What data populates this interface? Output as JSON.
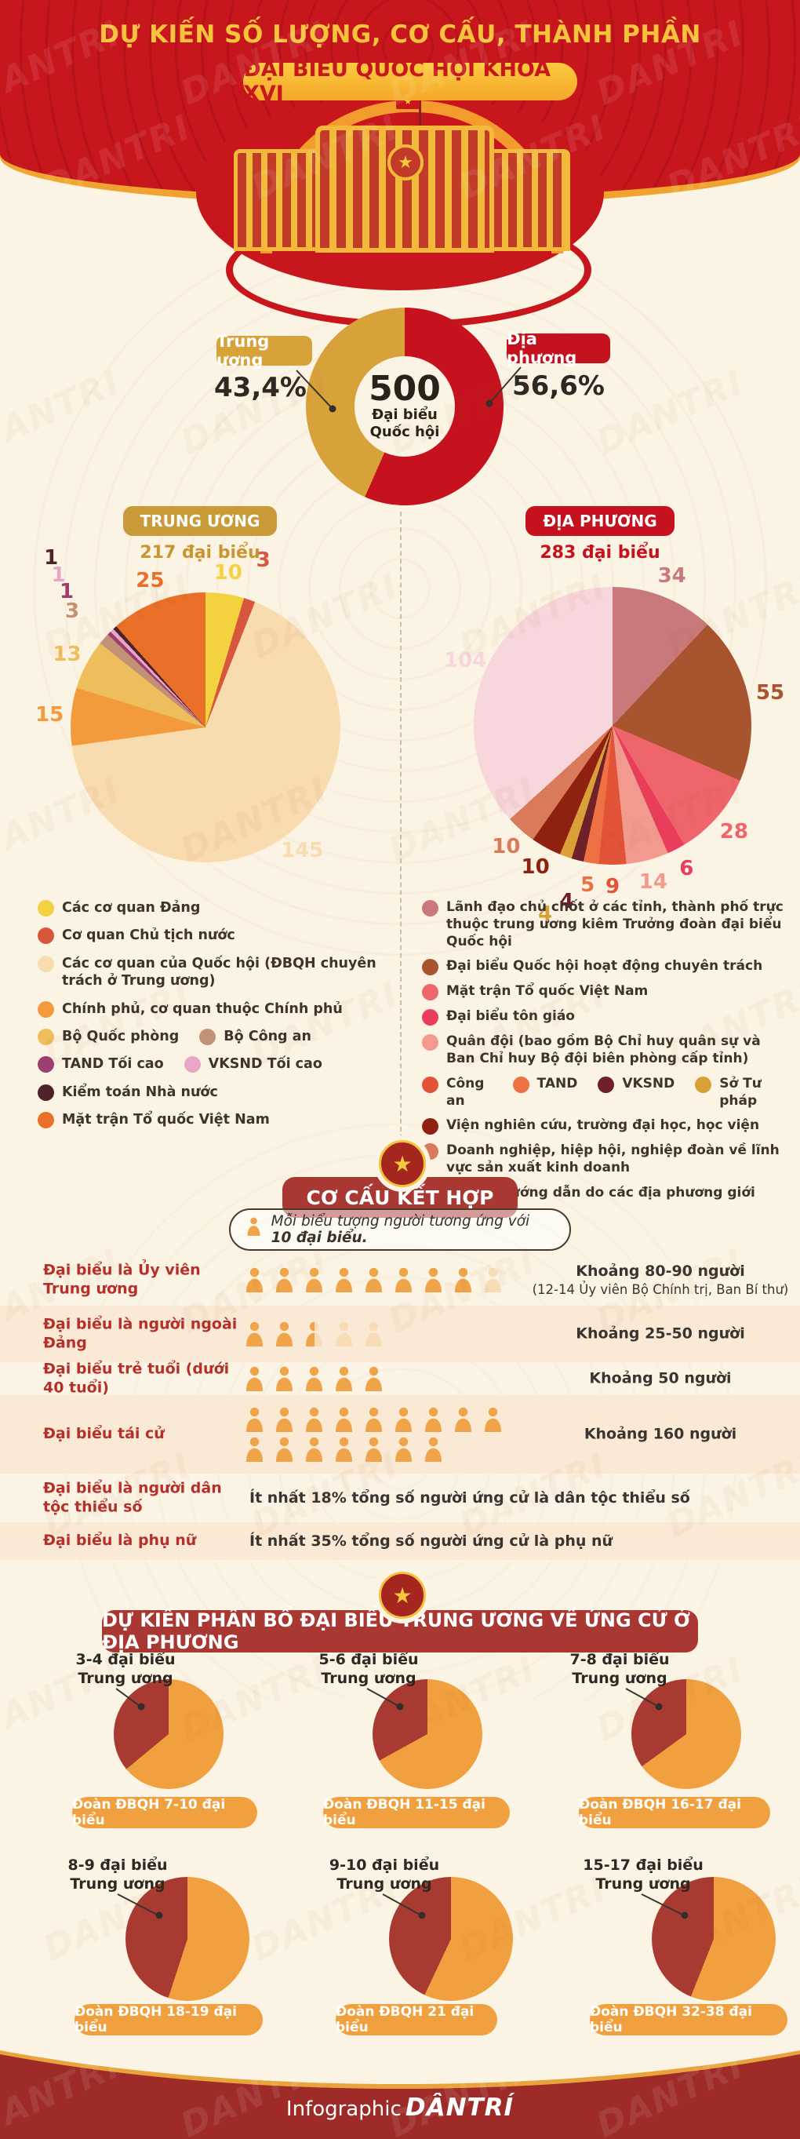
{
  "watermark": "DANTRI",
  "colors": {
    "header_red": "#C8161D",
    "gold": "#F2B93B",
    "cream": "#FBF4E4",
    "donut_gold": "#D8A23B",
    "donut_red": "#C5121E",
    "person_solid": "#F0A449",
    "person_light": "#F8DCB6",
    "mini_red": "#A93A31",
    "mini_orange": "#F0A03F"
  },
  "header": {
    "title": "DỰ KIẾN SỐ LƯỢNG, CƠ CẤU, THÀNH PHẦN",
    "pill": "ĐẠI BIỂU QUỐC HỘI KHÓA XVI"
  },
  "donut": {
    "center": {
      "value": "500",
      "line1": "Đại biểu",
      "line2": "Quốc hội"
    },
    "left": {
      "label": "Trung ương",
      "pct": "43,4%"
    },
    "right": {
      "label": "Địa phương",
      "pct": "56,6%"
    }
  },
  "columns": {
    "left": {
      "pill": "TRUNG ƯƠNG",
      "subtitle": "217 đại biểu",
      "legend": [
        [
          {
            "color": "#F4D13F",
            "label": "Các cơ quan Đảng"
          }
        ],
        [
          {
            "color": "#D6573B",
            "label": "Cơ quan Chủ tịch nước"
          }
        ],
        [
          {
            "color": "#F8DBAE",
            "label": "Các cơ quan của Quốc hội (ĐBQH chuyên trách ở Trung ương)"
          }
        ],
        [
          {
            "color": "#F29A3C",
            "label": "Chính phủ, cơ quan thuộc Chính phủ"
          }
        ],
        [
          {
            "color": "#EFBE5C",
            "label": "Bộ Quốc phòng"
          },
          {
            "color": "#C29176",
            "label": "Bộ Công an"
          }
        ],
        [
          {
            "color": "#9C3F70",
            "label": "TAND Tối cao"
          },
          {
            "color": "#E8A5C6",
            "label": "VKSND Tối cao"
          }
        ],
        [
          {
            "color": "#4E2328",
            "label": "Kiểm toán Nhà nước"
          }
        ],
        [
          {
            "color": "#EA6F28",
            "label": "Mặt trận Tổ quốc Việt Nam"
          }
        ]
      ]
    },
    "right": {
      "pill": "ĐỊA PHƯƠNG",
      "subtitle": "283 đại biểu",
      "legend": [
        [
          {
            "color": "#C9797B",
            "label": "Lãnh đạo chủ chốt ở các tỉnh, thành phố trực thuộc trung ương kiêm Trưởng đoàn đại biểu Quốc hội"
          }
        ],
        [
          {
            "color": "#A8542F",
            "label": "Đại biểu Quốc hội hoạt động chuyên trách"
          }
        ],
        [
          {
            "color": "#EE666B",
            "label": "Mặt trận Tổ quốc Việt Nam"
          }
        ],
        [
          {
            "color": "#EA3D5B",
            "label": "Đại biểu tôn giáo"
          }
        ],
        [
          {
            "color": "#F29A8D",
            "label": "Quân đội (bao gồm Bộ Chỉ huy quân sự và Ban Chỉ huy Bộ đội biên phòng cấp tỉnh)"
          }
        ],
        [
          {
            "color": "#E25338",
            "label": "Công an"
          },
          {
            "color": "#ED7142",
            "label": "TAND"
          },
          {
            "color": "#6E2128",
            "label": "VKSND"
          },
          {
            "color": "#D9A037",
            "label": "Sở Tư pháp"
          }
        ],
        [
          {
            "color": "#8F2110",
            "label": "Viện nghiên cứu, trường đại học, học viện"
          }
        ],
        [
          {
            "color": "#D97A5B",
            "label": "Doanh nghiệp, hiệp hội, nghiệp đoàn về lĩnh vực sản xuất kinh doanh"
          }
        ],
        [
          {
            "color": "#F7D6DC",
            "label": "Cơ cấu hướng dẫn do các địa phương giới thiệu"
          }
        ]
      ]
    }
  },
  "chart_data": [
    {
      "id": "donut-total",
      "type": "pie",
      "title": "500 Đại biểu Quốc hội",
      "slices": [
        {
          "label": "Địa phương",
          "value": 56.6,
          "color": "#C5121E"
        },
        {
          "label": "Trung ương",
          "value": 43.4,
          "color": "#D8A23B"
        }
      ]
    },
    {
      "id": "pie-trunguong",
      "type": "pie",
      "title": "TRUNG ƯƠNG 217 đại biểu",
      "total": 217,
      "slices": [
        {
          "label": "Các cơ quan Đảng",
          "value": 10,
          "color": "#F4D13F"
        },
        {
          "label": "Cơ quan Chủ tịch nước",
          "value": 3,
          "color": "#D6573B"
        },
        {
          "label": "Các cơ quan của Quốc hội (ĐBQH chuyên trách ở Trung ương)",
          "value": 145,
          "color": "#F8DBAE"
        },
        {
          "label": "Chính phủ, cơ quan thuộc Chính phủ",
          "value": 15,
          "color": "#F29A3C"
        },
        {
          "label": "Bộ Quốc phòng",
          "value": 13,
          "color": "#EFBE5C"
        },
        {
          "label": "Bộ Công an",
          "value": 3,
          "color": "#C29176"
        },
        {
          "label": "TAND Tối cao",
          "value": 1,
          "color": "#9C3F70"
        },
        {
          "label": "VKSND Tối cao",
          "value": 1,
          "color": "#E8A5C6"
        },
        {
          "label": "Kiểm toán Nhà nước",
          "value": 1,
          "color": "#4E2328"
        },
        {
          "label": "Mặt trận Tổ quốc Việt Nam",
          "value": 25,
          "color": "#EA6F28"
        }
      ]
    },
    {
      "id": "pie-diaphuong",
      "type": "pie",
      "title": "ĐỊA PHƯƠNG 283 đại biểu",
      "total": 283,
      "slices": [
        {
          "label": "Lãnh đạo chủ chốt ở các tỉnh, thành phố trực thuộc trung ương kiêm Trưởng đoàn đại biểu Quốc hội",
          "value": 34,
          "color": "#C9797B"
        },
        {
          "label": "Đại biểu Quốc hội hoạt động chuyên trách",
          "value": 55,
          "color": "#A8542F"
        },
        {
          "label": "Mặt trận Tổ quốc Việt Nam",
          "value": 28,
          "color": "#EE666B"
        },
        {
          "label": "Đại biểu tôn giáo",
          "value": 6,
          "color": "#EA3D5B"
        },
        {
          "label": "Quân đội (bao gồm Bộ Chỉ huy quân sự và Ban Chỉ huy Bộ đội biên phòng cấp tỉnh)",
          "value": 14,
          "color": "#F29A8D"
        },
        {
          "label": "Công an",
          "value": 9,
          "color": "#E25338"
        },
        {
          "label": "TAND",
          "value": 5,
          "color": "#ED7142"
        },
        {
          "label": "VKSND",
          "value": 4,
          "color": "#6E2128"
        },
        {
          "label": "Sở Tư pháp",
          "value": 4,
          "color": "#D9A037"
        },
        {
          "label": "Viện nghiên cứu, trường đại học, học viện",
          "value": 10,
          "color": "#8F2110"
        },
        {
          "label": "Doanh nghiệp, hiệp hội, nghiệp đoàn về lĩnh vực sản xuất kinh doanh",
          "value": 10,
          "color": "#D97A5B"
        },
        {
          "label": "Cơ cấu hướng dẫn do các địa phương giới thiệu",
          "value": 104,
          "color": "#F7D6DC"
        }
      ]
    },
    {
      "id": "mini-pies",
      "type": "pie-set",
      "note": "share of central-level deputies (red) within each delegation (orange)",
      "pies": [
        {
          "t1": "3-4 đại biểu",
          "t2": "Trung ương",
          "pill": "Đoàn ĐBQH 7-10 đại biểu",
          "red_share": 0.36
        },
        {
          "t1": "5-6 đại biểu",
          "t2": "Trung ương",
          "pill": "Đoàn ĐBQH 11-15 đại biểu",
          "red_share": 0.33
        },
        {
          "t1": "7-8 đại biểu",
          "t2": "Trung ương",
          "pill": "Đoàn ĐBQH 16-17 đại biểu",
          "red_share": 0.35
        },
        {
          "t1": "8-9 đại biểu",
          "t2": "Trung ương",
          "pill": "Đoàn ĐBQH 18-19 đại biểu",
          "red_share": 0.45
        },
        {
          "t1": "9-10 đại biểu",
          "t2": "Trung ương",
          "pill": "Đoàn ĐBQH 21 đại biểu",
          "red_share": 0.43
        },
        {
          "t1": "15-17 đại biểu",
          "t2": "Trung ương",
          "pill": "Đoàn ĐBQH 32-38 đại biểu",
          "red_share": 0.44
        }
      ]
    }
  ],
  "cocau": {
    "title": "CƠ CẤU KẾT HỢP",
    "note_prefix": "Mỗi biểu tượng người tương ứng với ",
    "note_bold": "10 đại biểu.",
    "rows": [
      {
        "label": "Đại biểu là Ủy viên Trung ương",
        "icon_rows": [
          [
            "s",
            "s",
            "s",
            "s",
            "s",
            "s",
            "s",
            "s",
            "l"
          ]
        ],
        "value": "Khoảng 80-90 người",
        "note": "(12-14 Ủy viên Bộ Chính trị, Ban Bí thư)"
      },
      {
        "label": "Đại biểu là người ngoài Đảng",
        "icon_rows": [
          [
            "s",
            "s",
            "h",
            "l",
            "l"
          ]
        ],
        "value": "Khoảng 25-50 người"
      },
      {
        "label": "Đại biểu trẻ tuổi (dưới 40 tuổi)",
        "icon_rows": [
          [
            "s",
            "s",
            "s",
            "s",
            "s"
          ]
        ],
        "value": "Khoảng 50 người"
      },
      {
        "label": "Đại biểu tái cử",
        "icon_rows": [
          [
            "s",
            "s",
            "s",
            "s",
            "s",
            "s",
            "s",
            "s",
            "s"
          ],
          [
            "s",
            "s",
            "s",
            "s",
            "s",
            "s",
            "s"
          ]
        ],
        "value": "Khoảng 160 người"
      },
      {
        "label": "Đại biểu là người dân tộc thiểu số",
        "text": "Ít nhất 18% tổng số người ứng cử là dân tộc thiểu số"
      },
      {
        "label": "Đại biểu là phụ nữ",
        "text": "Ít nhất 35% tổng số người ứng cử là phụ nữ"
      }
    ]
  },
  "phanbo": {
    "title": "DỰ KIẾN PHÂN BỔ ĐẠI BIỂU TRUNG ƯƠNG VỀ ỨNG CỬ Ở ĐỊA PHƯƠNG"
  },
  "footer": {
    "prefix": "Infographic",
    "brand": "DÂNTRÍ"
  }
}
